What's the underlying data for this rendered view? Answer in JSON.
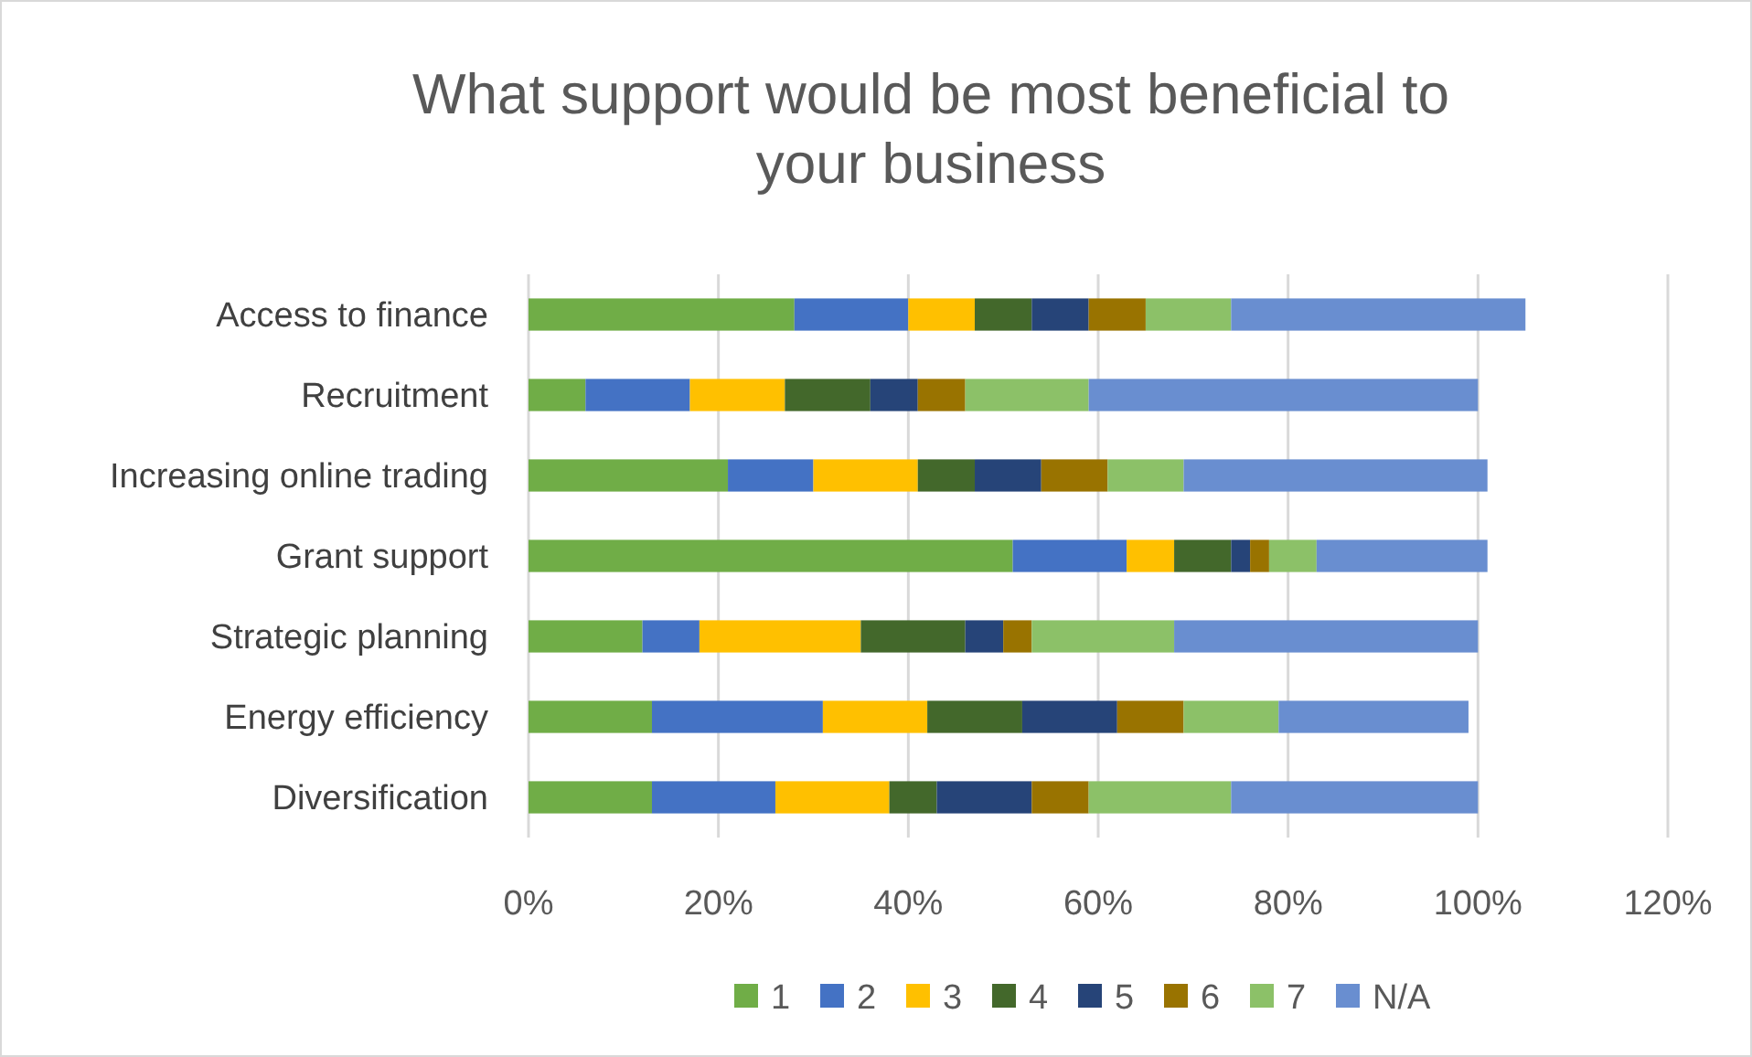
{
  "chart_data": {
    "type": "bar",
    "orientation": "horizontal",
    "stacked": true,
    "title": "What support would be most beneficial to your business",
    "categories": [
      "Access to finance",
      "Recruitment",
      "Increasing online trading",
      "Grant support",
      "Strategic planning",
      "Energy efficiency",
      "Diversification"
    ],
    "series": [
      {
        "name": "1",
        "color": "#70ad47",
        "values": [
          28,
          6,
          21,
          51,
          12,
          13,
          13
        ]
      },
      {
        "name": "2",
        "color": "#4472c4",
        "values": [
          12,
          11,
          9,
          12,
          6,
          18,
          13
        ]
      },
      {
        "name": "3",
        "color": "#ffc000",
        "values": [
          7,
          10,
          11,
          5,
          17,
          11,
          12
        ]
      },
      {
        "name": "4",
        "color": "#43682b",
        "values": [
          6,
          9,
          6,
          6,
          11,
          10,
          5
        ]
      },
      {
        "name": "5",
        "color": "#264478",
        "values": [
          6,
          5,
          7,
          2,
          4,
          10,
          10
        ]
      },
      {
        "name": "6",
        "color": "#997300",
        "values": [
          6,
          5,
          7,
          2,
          3,
          7,
          6
        ]
      },
      {
        "name": "7",
        "color": "#8cc168",
        "values": [
          9,
          13,
          8,
          5,
          15,
          10,
          15
        ]
      },
      {
        "name": "N/A",
        "color": "#698ed0",
        "values": [
          31,
          41,
          32,
          18,
          32,
          20,
          26
        ]
      }
    ],
    "xlim": [
      0,
      120
    ],
    "xticks": [
      {
        "value": 0,
        "label": "0%"
      },
      {
        "value": 20,
        "label": "20%"
      },
      {
        "value": 40,
        "label": "40%"
      },
      {
        "value": 60,
        "label": "60%"
      },
      {
        "value": 80,
        "label": "80%"
      },
      {
        "value": 100,
        "label": "100%"
      },
      {
        "value": 120,
        "label": "120%"
      }
    ],
    "grid": "x",
    "legend": "bottom"
  }
}
